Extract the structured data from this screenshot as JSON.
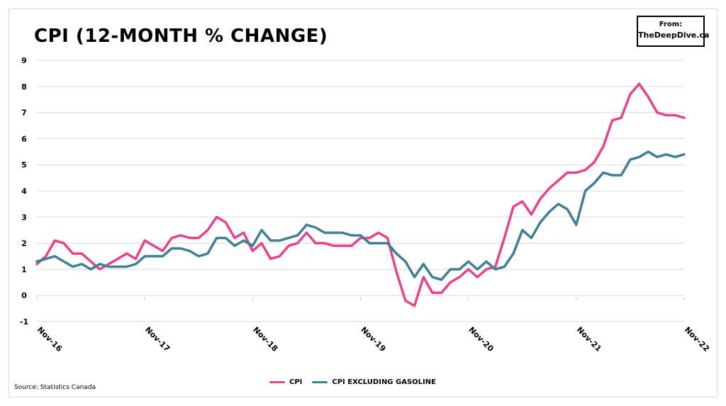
{
  "title": "CPI (12-Month % Change)",
  "badge": {
    "line1": "From:",
    "line2": "TheDeepDive.ca"
  },
  "source": "Source: Statistics Canada",
  "colors": {
    "cpi": "#e8428c",
    "core": "#3e8196",
    "grid": "#d9d9d9"
  },
  "chart_data": {
    "type": "line",
    "ylim": [
      -1,
      9
    ],
    "yticks": [
      "-1",
      "0",
      "1",
      "2",
      "3",
      "4",
      "5",
      "6",
      "7",
      "8",
      "9"
    ],
    "xtick_labels": [
      "Nov-16",
      "Nov-17",
      "Nov-18",
      "Nov-19",
      "Nov-20",
      "Nov-21",
      "Nov-22"
    ],
    "legend_position": "bottom",
    "grid": true,
    "x": [
      "Nov-16",
      "Dec-16",
      "Jan-17",
      "Feb-17",
      "Mar-17",
      "Apr-17",
      "May-17",
      "Jun-17",
      "Jul-17",
      "Aug-17",
      "Sep-17",
      "Oct-17",
      "Nov-17",
      "Dec-17",
      "Jan-18",
      "Feb-18",
      "Mar-18",
      "Apr-18",
      "May-18",
      "Jun-18",
      "Jul-18",
      "Aug-18",
      "Sep-18",
      "Oct-18",
      "Nov-18",
      "Dec-18",
      "Jan-19",
      "Feb-19",
      "Mar-19",
      "Apr-19",
      "May-19",
      "Jun-19",
      "Jul-19",
      "Aug-19",
      "Sep-19",
      "Oct-19",
      "Nov-19",
      "Dec-19",
      "Jan-20",
      "Feb-20",
      "Mar-20",
      "Apr-20",
      "May-20",
      "Jun-20",
      "Jul-20",
      "Aug-20",
      "Sep-20",
      "Oct-20",
      "Nov-20",
      "Dec-20",
      "Jan-21",
      "Feb-21",
      "Mar-21",
      "Apr-21",
      "May-21",
      "Jun-21",
      "Jul-21",
      "Aug-21",
      "Sep-21",
      "Oct-21",
      "Nov-21",
      "Dec-21",
      "Jan-22",
      "Feb-22",
      "Mar-22",
      "Apr-22",
      "May-22",
      "Jun-22",
      "Jul-22",
      "Aug-22",
      "Sep-22",
      "Oct-22",
      "Nov-22"
    ],
    "series": [
      {
        "name": "CPI",
        "values": [
          1.2,
          1.5,
          2.1,
          2.0,
          1.6,
          1.6,
          1.3,
          1.0,
          1.2,
          1.4,
          1.6,
          1.4,
          2.1,
          1.9,
          1.7,
          2.2,
          2.3,
          2.2,
          2.2,
          2.5,
          3.0,
          2.8,
          2.2,
          2.4,
          1.7,
          2.0,
          1.4,
          1.5,
          1.9,
          2.0,
          2.4,
          2.0,
          2.0,
          1.9,
          1.9,
          1.9,
          2.2,
          2.2,
          2.4,
          2.2,
          0.9,
          -0.2,
          -0.4,
          0.7,
          0.1,
          0.1,
          0.5,
          0.7,
          1.0,
          0.7,
          1.0,
          1.1,
          2.2,
          3.4,
          3.6,
          3.1,
          3.7,
          4.1,
          4.4,
          4.7,
          4.7,
          4.8,
          5.1,
          5.7,
          6.7,
          6.8,
          7.7,
          8.1,
          7.6,
          7.0,
          6.9,
          6.9,
          6.8
        ]
      },
      {
        "name": "CPI excluding gasoline",
        "values": [
          1.3,
          1.4,
          1.5,
          1.3,
          1.1,
          1.2,
          1.0,
          1.2,
          1.1,
          1.1,
          1.1,
          1.2,
          1.5,
          1.5,
          1.5,
          1.8,
          1.8,
          1.7,
          1.5,
          1.6,
          2.2,
          2.2,
          1.9,
          2.1,
          1.9,
          2.5,
          2.1,
          2.1,
          2.2,
          2.3,
          2.7,
          2.6,
          2.4,
          2.4,
          2.4,
          2.3,
          2.3,
          2.0,
          2.0,
          2.0,
          1.6,
          1.3,
          0.7,
          1.2,
          0.7,
          0.6,
          1.0,
          1.0,
          1.3,
          1.0,
          1.3,
          1.0,
          1.1,
          1.6,
          2.5,
          2.2,
          2.8,
          3.2,
          3.5,
          3.3,
          2.7,
          4.0,
          4.3,
          4.7,
          4.6,
          4.6,
          5.2,
          5.3,
          5.5,
          5.3,
          5.4,
          5.3,
          5.4
        ]
      }
    ]
  }
}
